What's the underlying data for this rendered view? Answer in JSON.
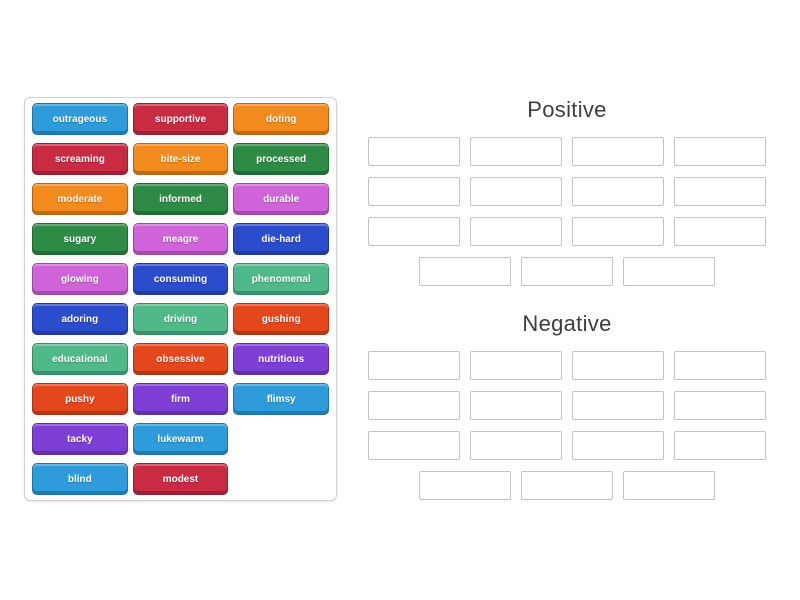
{
  "page": {
    "background": "#ffffff"
  },
  "palette": {
    "blue": "#2E9BDB",
    "crimson": "#C92B43",
    "orange": "#F28A1D",
    "green": "#2E8B46",
    "orchid": "#CF63D8",
    "royalblue": "#2B4CCD",
    "seagreen": "#4FB98A",
    "orangered": "#E5471C",
    "purple": "#7F3ED6"
  },
  "word_bank": {
    "row_lengths": [
      3,
      3,
      3,
      3,
      3,
      3,
      3,
      3,
      2,
      2
    ],
    "words": [
      {
        "label": "outrageous",
        "color": "blue"
      },
      {
        "label": "supportive",
        "color": "crimson"
      },
      {
        "label": "doting",
        "color": "orange"
      },
      {
        "label": "screaming",
        "color": "crimson"
      },
      {
        "label": "bite-size",
        "color": "orange"
      },
      {
        "label": "processed",
        "color": "green"
      },
      {
        "label": "moderate",
        "color": "orange"
      },
      {
        "label": "informed",
        "color": "green"
      },
      {
        "label": "durable",
        "color": "orchid"
      },
      {
        "label": "sugary",
        "color": "green"
      },
      {
        "label": "meagre",
        "color": "orchid"
      },
      {
        "label": "die-hard",
        "color": "royalblue"
      },
      {
        "label": "glowing",
        "color": "orchid"
      },
      {
        "label": "consuming",
        "color": "royalblue"
      },
      {
        "label": "phenomenal",
        "color": "seagreen"
      },
      {
        "label": "adoring",
        "color": "royalblue"
      },
      {
        "label": "driving",
        "color": "seagreen"
      },
      {
        "label": "gushing",
        "color": "orangered"
      },
      {
        "label": "educational",
        "color": "seagreen"
      },
      {
        "label": "obsessive",
        "color": "orangered"
      },
      {
        "label": "nutritious",
        "color": "purple"
      },
      {
        "label": "pushy",
        "color": "orangered"
      },
      {
        "label": "firm",
        "color": "purple"
      },
      {
        "label": "flimsy",
        "color": "blue"
      },
      {
        "label": "tacky",
        "color": "purple"
      },
      {
        "label": "lukewarm",
        "color": "blue"
      },
      {
        "label": "blind",
        "color": "blue"
      },
      {
        "label": "modest",
        "color": "crimson"
      }
    ]
  },
  "groups": [
    {
      "title": "Positive",
      "slot_rows": [
        4,
        4,
        4,
        3
      ]
    },
    {
      "title": "Negative",
      "slot_rows": [
        4,
        4,
        4,
        3
      ]
    }
  ]
}
